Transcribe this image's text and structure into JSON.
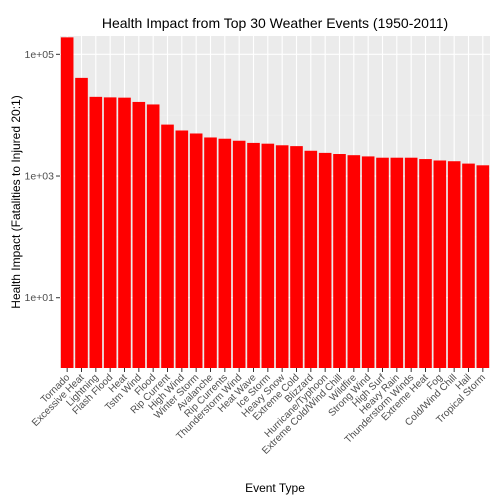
{
  "colors": {
    "bar": "#ff0000",
    "panel": "#ebebeb",
    "grid": "#ffffff",
    "text": "#4d4d4d"
  },
  "chart_data": {
    "type": "bar",
    "title": "Health Impact from Top 30 Weather Events (1950-2011)",
    "xlabel": "Event Type",
    "ylabel": "Health Impact (Fatalities to Injured 20:1)",
    "log_scale_y": true,
    "ylim": [
      0.7,
      200000
    ],
    "yticks": [
      {
        "value": 10,
        "label": "1e+01"
      },
      {
        "value": 1000,
        "label": "1e+03"
      },
      {
        "value": 100000,
        "label": "1e+05"
      }
    ],
    "grid": true,
    "categories": [
      "Tornado",
      "Excessive Heat",
      "Lightning",
      "Flash Flood",
      "Heat",
      "Tstm Wind",
      "Flood",
      "Rip Current",
      "High Wind",
      "Winter Storm",
      "Avalanche",
      "Rip Currents",
      "Thunderstorm Wind",
      "Heat Wave",
      "Ice Storm",
      "Heavy Snow",
      "Extreme Cold",
      "Blizzard",
      "Hurricane/Typhoon",
      "Extreme Cold/Wind Chill",
      "Wildfire",
      "Strong Wind",
      "High Surf",
      "Heavy Rain",
      "Thunderstorm Winds",
      "Extreme Heat",
      "Fog",
      "Cold/Wind Chill",
      "Hail",
      "Tropical Storm"
    ],
    "values": [
      190000,
      41000,
      20000,
      19600,
      19400,
      16500,
      15000,
      7000,
      5600,
      5000,
      4300,
      4100,
      3800,
      3500,
      3400,
      3200,
      3100,
      2600,
      2400,
      2300,
      2200,
      2100,
      2000,
      2000,
      2000,
      1900,
      1800,
      1750,
      1600,
      1500
    ]
  }
}
